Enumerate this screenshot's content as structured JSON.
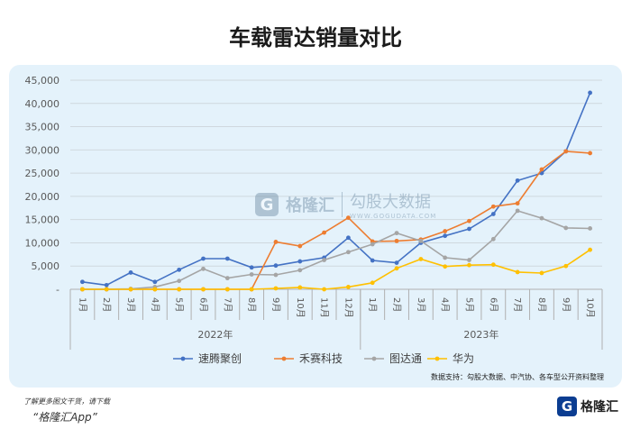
{
  "title": "车载雷达销量对比",
  "chart_data": {
    "type": "line",
    "title": "车载雷达销量对比",
    "categories": [
      "1月",
      "2月",
      "3月",
      "4月",
      "5月",
      "6月",
      "7月",
      "8月",
      "9月",
      "10月",
      "11月",
      "12月",
      "1月",
      "2月",
      "3月",
      "4月",
      "5月",
      "6月",
      "7月",
      "8月",
      "9月",
      "10月"
    ],
    "groups": [
      {
        "label": "2022年",
        "count": 12
      },
      {
        "label": "2023年",
        "count": 10
      }
    ],
    "y_ticks": [
      "-",
      "5,000",
      "10,000",
      "15,000",
      "20,000",
      "25,000",
      "30,000",
      "35,000",
      "40,000",
      "45,000"
    ],
    "ylim": [
      0,
      45000
    ],
    "grid": true,
    "legend_position": "bottom",
    "series": [
      {
        "name": "速腾聚创",
        "color": "#4472c4",
        "values": [
          1600,
          900,
          3600,
          1600,
          4200,
          6600,
          6600,
          4700,
          5100,
          6000,
          6800,
          11100,
          6200,
          5700,
          10000,
          11500,
          13000,
          16200,
          23400,
          25000,
          29700,
          42300
        ]
      },
      {
        "name": "禾赛科技",
        "color": "#ed7d31",
        "values": [
          0,
          0,
          0,
          0,
          0,
          0,
          0,
          0,
          10200,
          9300,
          12200,
          15400,
          10300,
          10400,
          10700,
          12500,
          14700,
          17800,
          18500,
          25800,
          29700,
          29300
        ]
      },
      {
        "name": "图达通",
        "color": "#a5a5a5",
        "values": [
          0,
          0,
          100,
          500,
          1800,
          4400,
          2400,
          3200,
          3100,
          4100,
          6300,
          8000,
          9700,
          12100,
          10400,
          6800,
          6300,
          10800,
          16900,
          15300,
          13200,
          13100
        ]
      },
      {
        "name": "华为",
        "color": "#ffc000",
        "values": [
          0,
          0,
          0,
          0,
          0,
          0,
          0,
          0,
          200,
          400,
          0,
          500,
          1400,
          4500,
          6500,
          4900,
          5200,
          5300,
          3700,
          3500,
          5000,
          8500
        ]
      }
    ],
    "source": "数据支持：勾股大数据、中汽协、各车型公开资料整理"
  },
  "watermark": {
    "logo": "G",
    "name": "格隆汇",
    "slogan": "勾股大数据",
    "url": "WWW.GOGUDATA.COM"
  },
  "footer": {
    "note": "了解更多图文干货，请下载",
    "app": "“格隆汇App”",
    "brand_logo": "G",
    "brand_name": "格隆汇"
  }
}
